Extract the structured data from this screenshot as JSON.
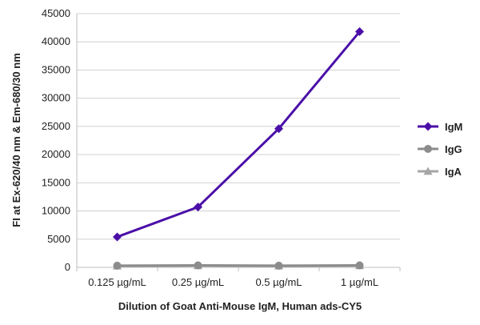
{
  "chart_data": {
    "type": "line",
    "title": "",
    "xlabel": "Dilution of Goat Anti-Mouse IgM, Human ads-CY5",
    "ylabel": "FI at Ex-620/40 nm & Em-680/30 nm",
    "categories": [
      "0.125 µg/mL",
      "0.25 µg/mL",
      "0.5 µg/mL",
      "1 µg/mL"
    ],
    "ylim": [
      0,
      45000
    ],
    "yticks": [
      0,
      5000,
      10000,
      15000,
      20000,
      25000,
      30000,
      35000,
      40000,
      45000
    ],
    "grid": "horizontal",
    "legend_position": "right",
    "series": [
      {
        "name": "IgM",
        "values": [
          5400,
          10700,
          24600,
          41800
        ],
        "color": "#4b0fa8",
        "marker": "diamond"
      },
      {
        "name": "IgG",
        "values": [
          300,
          350,
          300,
          350
        ],
        "color": "#8c8c8c",
        "marker": "circle"
      },
      {
        "name": "IgA",
        "values": [
          250,
          300,
          250,
          300
        ],
        "color": "#a6a6a6",
        "marker": "triangle"
      }
    ]
  }
}
